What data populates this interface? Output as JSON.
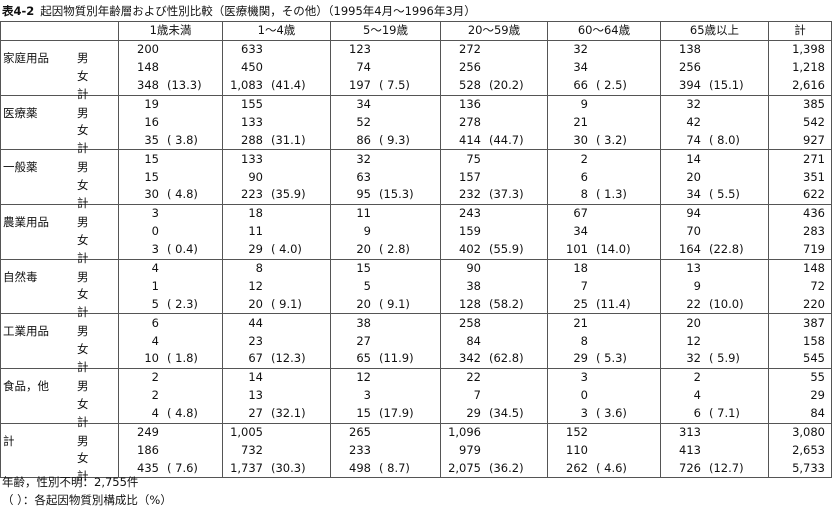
{
  "title": {
    "label": "表4-2",
    "text": "起因物質別年齢層および性別比較（医療機関，その他）（1995年4月～1996年3月）"
  },
  "table": {
    "columns": [
      "1歳未満",
      "1～4歳",
      "5～19歳",
      "20～59歳",
      "60～64歳",
      "65歳以上",
      "計"
    ],
    "groups": [
      {
        "name": "家庭用品",
        "rows": [
          {
            "sex": "男",
            "cells": [
              [
                "200"
              ],
              [
                "633"
              ],
              [
                "123"
              ],
              [
                "272"
              ],
              [
                "32"
              ],
              [
                "138"
              ],
              [
                "1,398"
              ]
            ]
          },
          {
            "sex": "女",
            "cells": [
              [
                "148"
              ],
              [
                "450"
              ],
              [
                "74"
              ],
              [
                "256"
              ],
              [
                "34"
              ],
              [
                "256"
              ],
              [
                "1,218"
              ]
            ]
          },
          {
            "sex": "計",
            "cells": [
              [
                "348",
                "(13.3)"
              ],
              [
                "1,083",
                "(41.4)"
              ],
              [
                "197",
                "( 7.5)"
              ],
              [
                "528",
                "(20.2)"
              ],
              [
                "66",
                "( 2.5)"
              ],
              [
                "394",
                "(15.1)"
              ],
              [
                "2,616"
              ]
            ]
          }
        ]
      },
      {
        "name": "医療薬",
        "rows": [
          {
            "sex": "男",
            "cells": [
              [
                "19"
              ],
              [
                "155"
              ],
              [
                "34"
              ],
              [
                "136"
              ],
              [
                "9"
              ],
              [
                "32"
              ],
              [
                "385"
              ]
            ]
          },
          {
            "sex": "女",
            "cells": [
              [
                "16"
              ],
              [
                "133"
              ],
              [
                "52"
              ],
              [
                "278"
              ],
              [
                "21"
              ],
              [
                "42"
              ],
              [
                "542"
              ]
            ]
          },
          {
            "sex": "計",
            "cells": [
              [
                "35",
                "( 3.8)"
              ],
              [
                "288",
                "(31.1)"
              ],
              [
                "86",
                "( 9.3)"
              ],
              [
                "414",
                "(44.7)"
              ],
              [
                "30",
                "( 3.2)"
              ],
              [
                "74",
                "( 8.0)"
              ],
              [
                "927"
              ]
            ]
          }
        ]
      },
      {
        "name": "一般薬",
        "rows": [
          {
            "sex": "男",
            "cells": [
              [
                "15"
              ],
              [
                "133"
              ],
              [
                "32"
              ],
              [
                "75"
              ],
              [
                "2"
              ],
              [
                "14"
              ],
              [
                "271"
              ]
            ]
          },
          {
            "sex": "女",
            "cells": [
              [
                "15"
              ],
              [
                "90"
              ],
              [
                "63"
              ],
              [
                "157"
              ],
              [
                "6"
              ],
              [
                "20"
              ],
              [
                "351"
              ]
            ]
          },
          {
            "sex": "計",
            "cells": [
              [
                "30",
                "( 4.8)"
              ],
              [
                "223",
                "(35.9)"
              ],
              [
                "95",
                "(15.3)"
              ],
              [
                "232",
                "(37.3)"
              ],
              [
                "8",
                "( 1.3)"
              ],
              [
                "34",
                "( 5.5)"
              ],
              [
                "622"
              ]
            ]
          }
        ]
      },
      {
        "name": "農業用品",
        "rows": [
          {
            "sex": "男",
            "cells": [
              [
                "3"
              ],
              [
                "18"
              ],
              [
                "11"
              ],
              [
                "243"
              ],
              [
                "67"
              ],
              [
                "94"
              ],
              [
                "436"
              ]
            ]
          },
          {
            "sex": "女",
            "cells": [
              [
                "0"
              ],
              [
                "11"
              ],
              [
                "9"
              ],
              [
                "159"
              ],
              [
                "34"
              ],
              [
                "70"
              ],
              [
                "283"
              ]
            ]
          },
          {
            "sex": "計",
            "cells": [
              [
                "3",
                "( 0.4)"
              ],
              [
                "29",
                "( 4.0)"
              ],
              [
                "20",
                "( 2.8)"
              ],
              [
                "402",
                "(55.9)"
              ],
              [
                "101",
                "(14.0)"
              ],
              [
                "164",
                "(22.8)"
              ],
              [
                "719"
              ]
            ]
          }
        ]
      },
      {
        "name": "自然毒",
        "rows": [
          {
            "sex": "男",
            "cells": [
              [
                "4"
              ],
              [
                "8"
              ],
              [
                "15"
              ],
              [
                "90"
              ],
              [
                "18"
              ],
              [
                "13"
              ],
              [
                "148"
              ]
            ]
          },
          {
            "sex": "女",
            "cells": [
              [
                "1"
              ],
              [
                "12"
              ],
              [
                "5"
              ],
              [
                "38"
              ],
              [
                "7"
              ],
              [
                "9"
              ],
              [
                "72"
              ]
            ]
          },
          {
            "sex": "計",
            "cells": [
              [
                "5",
                "( 2.3)"
              ],
              [
                "20",
                "( 9.1)"
              ],
              [
                "20",
                "( 9.1)"
              ],
              [
                "128",
                "(58.2)"
              ],
              [
                "25",
                "(11.4)"
              ],
              [
                "22",
                "(10.0)"
              ],
              [
                "220"
              ]
            ]
          }
        ]
      },
      {
        "name": "工業用品",
        "rows": [
          {
            "sex": "男",
            "cells": [
              [
                "6"
              ],
              [
                "44"
              ],
              [
                "38"
              ],
              [
                "258"
              ],
              [
                "21"
              ],
              [
                "20"
              ],
              [
                "387"
              ]
            ]
          },
          {
            "sex": "女",
            "cells": [
              [
                "4"
              ],
              [
                "23"
              ],
              [
                "27"
              ],
              [
                "84"
              ],
              [
                "8"
              ],
              [
                "12"
              ],
              [
                "158"
              ]
            ]
          },
          {
            "sex": "計",
            "cells": [
              [
                "10",
                "( 1.8)"
              ],
              [
                "67",
                "(12.3)"
              ],
              [
                "65",
                "(11.9)"
              ],
              [
                "342",
                "(62.8)"
              ],
              [
                "29",
                "( 5.3)"
              ],
              [
                "32",
                "( 5.9)"
              ],
              [
                "545"
              ]
            ]
          }
        ]
      },
      {
        "name": "食品，他",
        "rows": [
          {
            "sex": "男",
            "cells": [
              [
                "2"
              ],
              [
                "14"
              ],
              [
                "12"
              ],
              [
                "22"
              ],
              [
                "3"
              ],
              [
                "2"
              ],
              [
                "55"
              ]
            ]
          },
          {
            "sex": "女",
            "cells": [
              [
                "2"
              ],
              [
                "13"
              ],
              [
                "3"
              ],
              [
                "7"
              ],
              [
                "0"
              ],
              [
                "4"
              ],
              [
                "29"
              ]
            ]
          },
          {
            "sex": "計",
            "cells": [
              [
                "4",
                "( 4.8)"
              ],
              [
                "27",
                "(32.1)"
              ],
              [
                "15",
                "(17.9)"
              ],
              [
                "29",
                "(34.5)"
              ],
              [
                "3",
                "( 3.6)"
              ],
              [
                "6",
                "( 7.1)"
              ],
              [
                "84"
              ]
            ]
          }
        ]
      },
      {
        "name": "計",
        "rows": [
          {
            "sex": "男",
            "cells": [
              [
                "249"
              ],
              [
                "1,005"
              ],
              [
                "265"
              ],
              [
                "1,096"
              ],
              [
                "152"
              ],
              [
                "313"
              ],
              [
                "3,080"
              ]
            ]
          },
          {
            "sex": "女",
            "cells": [
              [
                "186"
              ],
              [
                "732"
              ],
              [
                "233"
              ],
              [
                "979"
              ],
              [
                "110"
              ],
              [
                "413"
              ],
              [
                "2,653"
              ]
            ]
          },
          {
            "sex": "計",
            "cells": [
              [
                "435",
                "( 7.6)"
              ],
              [
                "1,737",
                "(30.3)"
              ],
              [
                "498",
                "( 8.7)"
              ],
              [
                "2,075",
                "(36.2)"
              ],
              [
                "262",
                "( 4.6)"
              ],
              [
                "726",
                "(12.7)"
              ],
              [
                "5,733"
              ]
            ]
          }
        ]
      }
    ]
  },
  "notes": [
    "年齢，性別不明：2,755件",
    "（ ）：各起因物質別構成比（%）"
  ]
}
